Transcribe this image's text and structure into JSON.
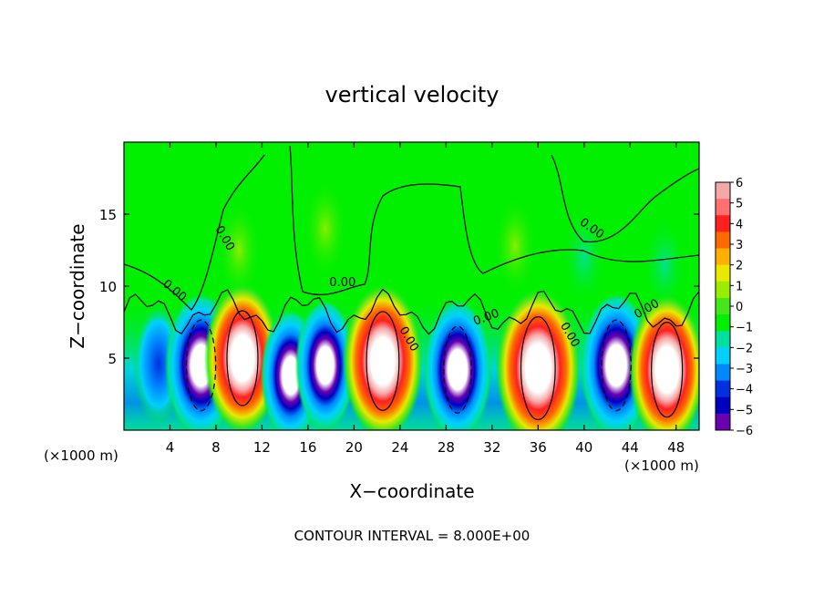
{
  "chart_data": {
    "type": "heatmap",
    "title": "vertical velocity",
    "xlabel": "X−coordinate",
    "ylabel": "Z−coordinate",
    "x_unit_left": "(×1000 m)",
    "x_unit_right": "(×1000 m)",
    "xlim": [
      0,
      50
    ],
    "ylim": [
      0,
      20
    ],
    "x_ticks": [
      4,
      8,
      12,
      16,
      20,
      24,
      28,
      32,
      36,
      40,
      44,
      48
    ],
    "y_ticks": [
      5,
      10,
      15
    ],
    "footer": "CONTOUR INTERVAL = 8.000E+00",
    "contour_labels": [
      {
        "text": "0.00",
        "x": 8.5,
        "y": 13.2,
        "rot": 60
      },
      {
        "text": "0.00",
        "x": 4.2,
        "y": 9.5,
        "rot": 40
      },
      {
        "text": "0.00",
        "x": 19.0,
        "y": 10.0,
        "rot": 0
      },
      {
        "text": "0.00",
        "x": 24.5,
        "y": 6.2,
        "rot": 60
      },
      {
        "text": "0.00",
        "x": 31.6,
        "y": 7.6,
        "rot": -20
      },
      {
        "text": "0.00",
        "x": 38.5,
        "y": 6.5,
        "rot": 60
      },
      {
        "text": "0.00",
        "x": 40.5,
        "y": 13.8,
        "rot": 35
      },
      {
        "text": "0.00",
        "x": 45.6,
        "y": 8.2,
        "rot": -30
      }
    ],
    "colorbar": {
      "ticks": [
        "6",
        "5",
        "4",
        "3",
        "2",
        "1",
        "0",
        "−1",
        "−2",
        "−3",
        "−4",
        "−5",
        "−6"
      ],
      "colors": [
        "#f5a8a8",
        "#ff7070",
        "#ff2020",
        "#ff6a00",
        "#ffb000",
        "#e8e800",
        "#99ee00",
        "#44e61c",
        "#00f000",
        "#00e0a0",
        "#00d0ff",
        "#0088ff",
        "#0030e0",
        "#0000c0",
        "#6a00b0"
      ]
    },
    "cells": [
      {
        "x": 3,
        "z": 4.6,
        "w": -3.5
      },
      {
        "x": 6.7,
        "z": 4.5,
        "w": -9
      },
      {
        "x": 10.3,
        "z": 5.0,
        "w": 10
      },
      {
        "x": 14.5,
        "z": 3.8,
        "w": -6
      },
      {
        "x": 17.5,
        "z": 4.5,
        "w": -6
      },
      {
        "x": 22.5,
        "z": 4.8,
        "w": 11
      },
      {
        "x": 29.0,
        "z": 4.2,
        "w": -8
      },
      {
        "x": 36.0,
        "z": 4.3,
        "w": 12
      },
      {
        "x": 42.8,
        "z": 4.5,
        "w": -9
      },
      {
        "x": 47.2,
        "z": 4.2,
        "w": 10
      }
    ],
    "plumes": [
      {
        "x": 10.0,
        "z": 12.5,
        "w": 0.6
      },
      {
        "x": 17.5,
        "z": 14.0,
        "w": 0.4
      },
      {
        "x": 34.0,
        "z": 12.8,
        "w": 0.5
      },
      {
        "x": 40.0,
        "z": 12.0,
        "w": -0.5
      },
      {
        "x": 47.0,
        "z": 11.5,
        "w": -0.4
      }
    ]
  }
}
